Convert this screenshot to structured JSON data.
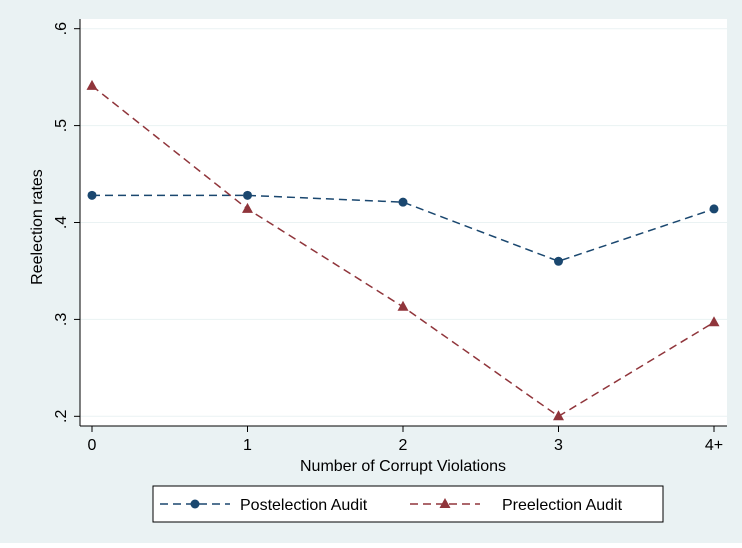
{
  "chart_data": {
    "type": "line",
    "title": "",
    "xlabel": "Number of Corrupt Violations",
    "ylabel": "Reelection rates",
    "categories": [
      "0",
      "1",
      "2",
      "3",
      "4+"
    ],
    "yticks": [
      0.2,
      0.3,
      0.4,
      0.5,
      0.6
    ],
    "ytick_labels": [
      ".2",
      ".3",
      ".4",
      ".5",
      ".6"
    ],
    "ylim": [
      0.19,
      0.61
    ],
    "grid": true,
    "legend_position": "bottom",
    "series": [
      {
        "name": "Postelection Audit",
        "values": [
          0.428,
          0.428,
          0.421,
          0.36,
          0.414
        ],
        "color": "#1a476f",
        "marker": "circle",
        "line_style": "dashed"
      },
      {
        "name": "Preelection Audit",
        "values": [
          0.541,
          0.414,
          0.313,
          0.2,
          0.297
        ],
        "color": "#90353b",
        "marker": "triangle",
        "line_style": "dashed"
      }
    ]
  }
}
